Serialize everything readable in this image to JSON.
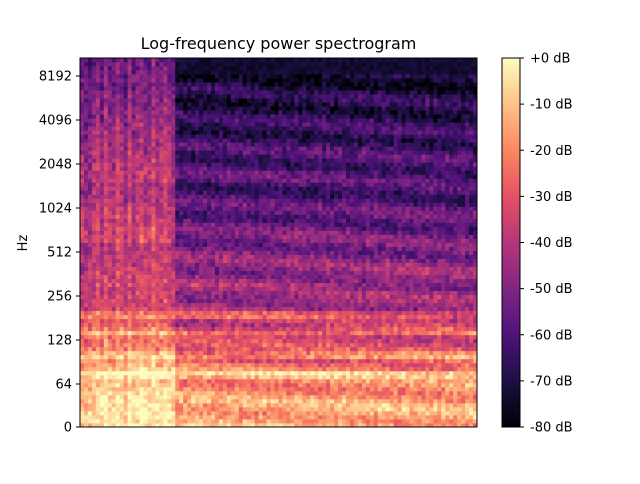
{
  "chart_data": {
    "type": "heatmap",
    "title": "Log-frequency power spectrogram",
    "xlabel": "",
    "ylabel": "Hz",
    "y_scale": "log2 with linear region near 0",
    "y_ticks": [
      "0",
      "64",
      "128",
      "256",
      "512",
      "1024",
      "2048",
      "4096",
      "8192"
    ],
    "y_tick_values": [
      0,
      64,
      128,
      256,
      512,
      1024,
      2048,
      4096,
      8192
    ],
    "x_ticks": [],
    "colormap": "magma",
    "colorbar": {
      "range_db": [
        -80,
        0
      ],
      "ticks": [
        "+0 dB",
        "-10 dB",
        "-20 dB",
        "-30 dB",
        "-40 dB",
        "-50 dB",
        "-60 dB",
        "-70 dB",
        "-80 dB"
      ],
      "tick_values": [
        0,
        -10,
        -20,
        -30,
        -40,
        -50,
        -60,
        -70,
        -80
      ],
      "placement": "right"
    },
    "features": {
      "onset_transient": "broadband energy across all frequencies in early portion",
      "sustained_bands_hz": [
        75,
        100,
        145,
        190
      ],
      "high_freq_decay": "energy above ~512 Hz decays to -55 to -75 dB after the onset"
    }
  }
}
